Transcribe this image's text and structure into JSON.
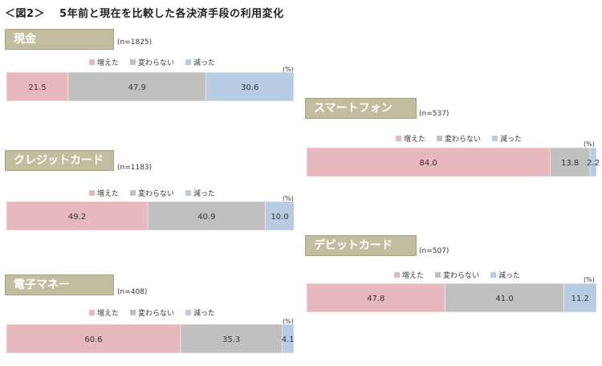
{
  "figure": {
    "label": "＜図2＞",
    "title": "5年前と現在を比較した各決済手段の利用変化"
  },
  "colors": {
    "increased": "#e7b8bd",
    "unchanged": "#c0c0c0",
    "decreased": "#b8cce4"
  },
  "legend": [
    "増えた",
    "変わらない",
    "減った"
  ],
  "unit_label": "(%)",
  "chart_data": [
    {
      "type": "bar",
      "orientation": "horizontal-stacked",
      "title": "現金",
      "n": "(n=1825)",
      "categories": [
        "現金"
      ],
      "series": [
        {
          "name": "増えた",
          "values": [
            21.5
          ]
        },
        {
          "name": "変わらない",
          "values": [
            47.9
          ]
        },
        {
          "name": "減った",
          "values": [
            30.6
          ]
        }
      ],
      "xlim": [
        0,
        100
      ]
    },
    {
      "type": "bar",
      "orientation": "horizontal-stacked",
      "title": "クレジットカード",
      "n": "(n=1183)",
      "categories": [
        "クレジットカード"
      ],
      "series": [
        {
          "name": "増えた",
          "values": [
            49.2
          ]
        },
        {
          "name": "変わらない",
          "values": [
            40.9
          ]
        },
        {
          "name": "減った",
          "values": [
            10.0
          ]
        }
      ],
      "xlim": [
        0,
        100
      ]
    },
    {
      "type": "bar",
      "orientation": "horizontal-stacked",
      "title": "電子マネー",
      "n": "(n=408)",
      "categories": [
        "電子マネー"
      ],
      "series": [
        {
          "name": "増えた",
          "values": [
            60.6
          ]
        },
        {
          "name": "変わらない",
          "values": [
            35.3
          ]
        },
        {
          "name": "減った",
          "values": [
            4.1
          ]
        }
      ],
      "xlim": [
        0,
        100
      ]
    },
    {
      "type": "bar",
      "orientation": "horizontal-stacked",
      "title": "スマートフォン",
      "n": "(n=537)",
      "categories": [
        "スマートフォン"
      ],
      "series": [
        {
          "name": "増えた",
          "values": [
            84.0
          ]
        },
        {
          "name": "変わらない",
          "values": [
            13.8
          ]
        },
        {
          "name": "減った",
          "values": [
            2.2
          ]
        }
      ],
      "xlim": [
        0,
        100
      ]
    },
    {
      "type": "bar",
      "orientation": "horizontal-stacked",
      "title": "デビットカード",
      "n": "(n=507)",
      "categories": [
        "デビットカード"
      ],
      "series": [
        {
          "name": "増えた",
          "values": [
            47.8
          ]
        },
        {
          "name": "変わらない",
          "values": [
            41.0
          ]
        },
        {
          "name": "減った",
          "values": [
            11.2
          ]
        }
      ],
      "xlim": [
        0,
        100
      ]
    }
  ]
}
